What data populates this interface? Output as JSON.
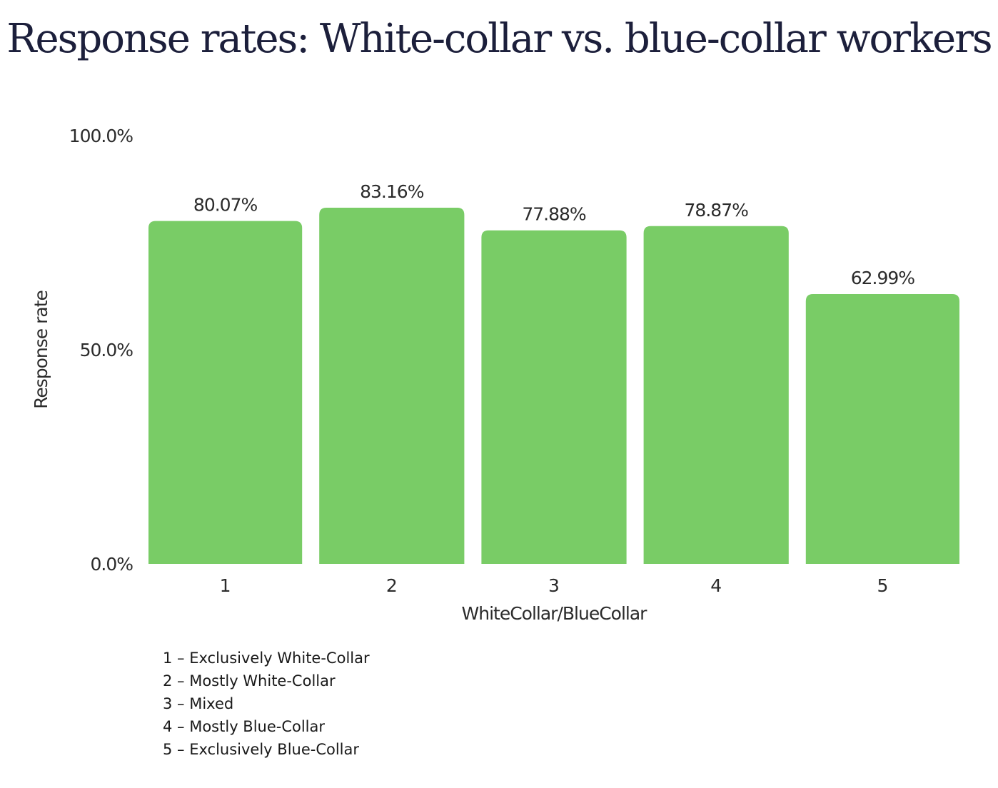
{
  "title": "Response rates: White-collar vs. blue-collar workers",
  "chart_data": {
    "type": "bar",
    "categories": [
      "1",
      "2",
      "3",
      "4",
      "5"
    ],
    "values": [
      80.07,
      83.16,
      77.88,
      78.87,
      62.99
    ],
    "value_labels": [
      "80.07%",
      "83.16%",
      "77.88%",
      "78.87%",
      "62.99%"
    ],
    "xlabel": "WhiteCollar/BlueCollar",
    "ylabel": "Response rate",
    "ylim": [
      0,
      100
    ],
    "yticks": [
      {
        "value": 0,
        "label": "0.0%"
      },
      {
        "value": 50,
        "label": "50.0%"
      },
      {
        "value": 100,
        "label": "100.0%"
      }
    ],
    "bar_color": "#79cc66",
    "grid": false,
    "legend": "bottom-left"
  },
  "legend_items": [
    "1 – Exclusively White-Collar",
    "2 – Mostly White-Collar",
    "3 – Mixed",
    "4 – Mostly Blue-Collar",
    "5 – Exclusively Blue-Collar"
  ],
  "colors": {
    "title": "#1c1f3b",
    "bar": "#79cc66",
    "text": "#2b2b2b"
  }
}
